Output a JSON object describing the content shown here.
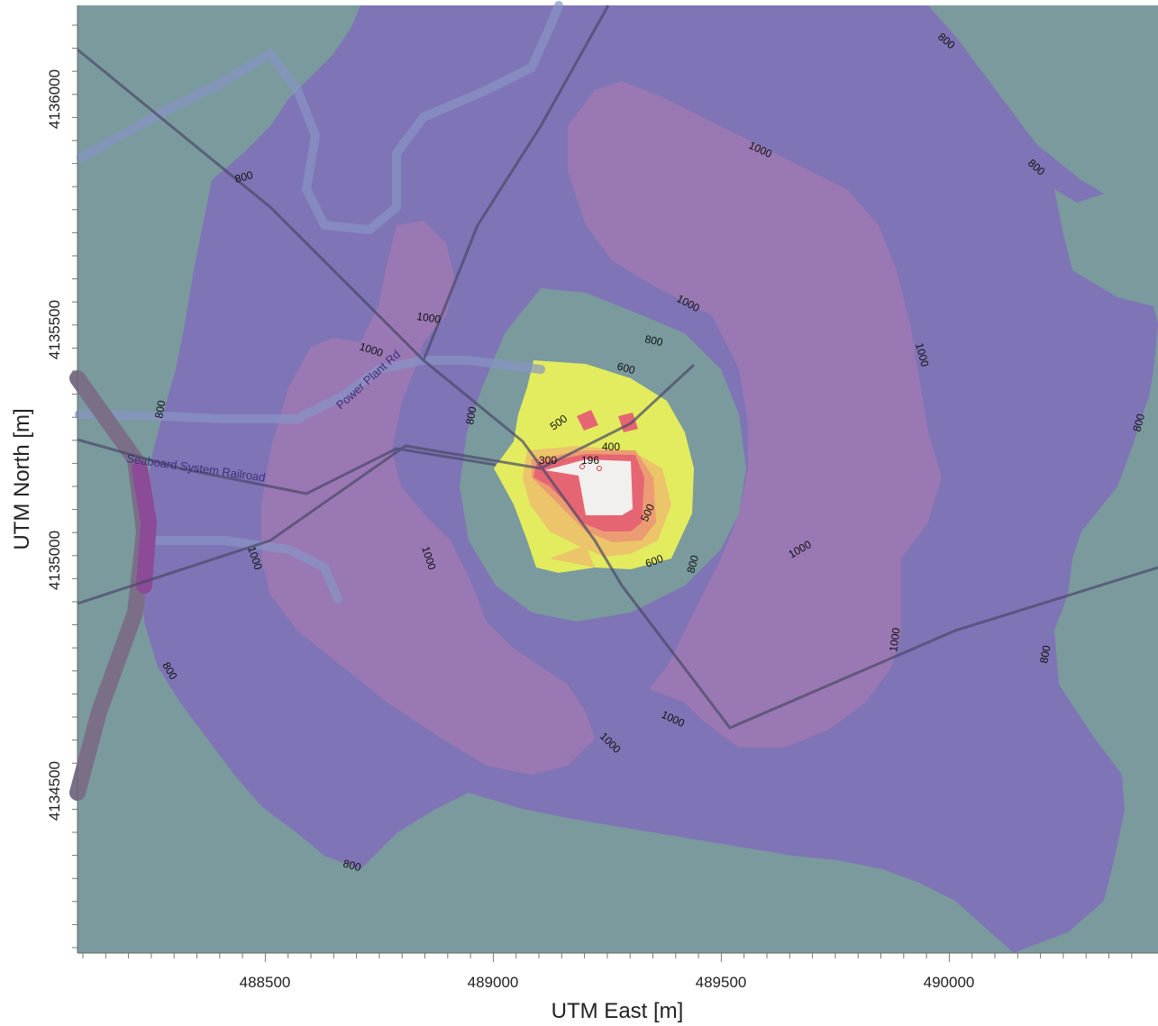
{
  "chart_data": {
    "type": "contour-map",
    "xlabel": "UTM East [m]",
    "ylabel": "UTM North [m]",
    "x_ticks": [
      "488500",
      "489000",
      "489500",
      "490000"
    ],
    "y_ticks": [
      "4136000",
      "4135500",
      "4135000",
      "4134500"
    ],
    "contour_levels": [
      196,
      300,
      400,
      500,
      600,
      800,
      1000
    ],
    "contour_labels": [
      "800",
      "800",
      "800",
      "800",
      "800",
      "800",
      "800",
      "800",
      "800",
      "800",
      "800",
      "1000",
      "1000",
      "1000",
      "1000",
      "1000",
      "1000",
      "1000",
      "1000",
      "1000",
      "1000",
      "1000",
      "600",
      "600",
      "500",
      "500",
      "400",
      "300",
      "196"
    ],
    "road_labels": [
      "Power Plant Rd",
      "Seaboard System Railroad"
    ],
    "colors": {
      "background": "#7a9a9e",
      "level_800": "#7f74b5",
      "level_1000": "#9a78b3",
      "level_600": "#e2ec5e",
      "level_500": "#ecc46a",
      "level_400": "#ec9c72",
      "level_300": "#e56672",
      "level_196": "#f2f0ee"
    }
  }
}
